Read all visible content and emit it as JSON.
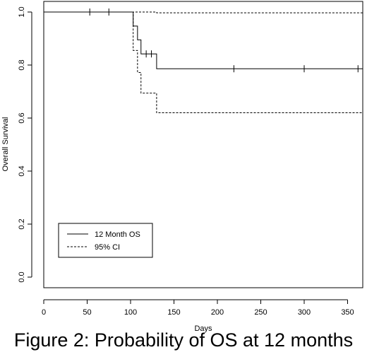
{
  "caption": "Figure 2: Probability of OS at 12 months",
  "chart_data": {
    "type": "line",
    "xlabel": "Days",
    "ylabel": "Overall Survival",
    "xlim": [
      0,
      370
    ],
    "ylim": [
      0.0,
      1.0
    ],
    "xticks": [
      0,
      50,
      100,
      150,
      200,
      250,
      300,
      350
    ],
    "yticks": [
      0.0,
      0.2,
      0.4,
      0.6,
      0.8,
      1.0
    ],
    "xtick_labels": [
      "0",
      "50",
      "100",
      "150",
      "200",
      "250",
      "300",
      "350"
    ],
    "ytick_labels": [
      "0.0",
      "0.2",
      "0.4",
      "0.6",
      "0.8",
      "1.0"
    ],
    "grid": false,
    "legend_position": "bottom-left",
    "series": [
      {
        "name": "12 Month OS",
        "style": "solid",
        "step": true,
        "x": [
          0,
          103,
          108,
          112,
          123,
          130,
          370
        ],
        "y": [
          1.0,
          0.947,
          0.895,
          0.842,
          0.842,
          0.786,
          0.786
        ],
        "censor_times": [
          53,
          75,
          118,
          124,
          219,
          300,
          362
        ]
      },
      {
        "name": "95% CI",
        "style": "dashed",
        "step": true,
        "x": [
          0,
          103,
          108,
          112,
          130,
          370
        ],
        "y": [
          1.0,
          0.855,
          0.772,
          0.694,
          0.62,
          0.62
        ]
      },
      {
        "name": "95% CI",
        "style": "dashed",
        "step": true,
        "x": [
          0,
          130,
          370
        ],
        "y": [
          1.0,
          0.997,
          0.997
        ],
        "legend": false
      }
    ]
  }
}
